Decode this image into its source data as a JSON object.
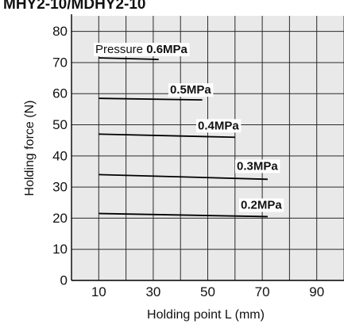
{
  "header_text": "MHY2-10/MDHY2-10",
  "chart_data": {
    "type": "line",
    "title": "",
    "xlabel": "Holding point L (mm)",
    "ylabel": "Holding force (N)",
    "xlim": [
      0,
      100
    ],
    "ylim": [
      0,
      85
    ],
    "xticks": [
      10,
      30,
      50,
      70,
      90
    ],
    "yticks": [
      0,
      10,
      20,
      30,
      40,
      50,
      60,
      70,
      80
    ],
    "grid": true,
    "background": "#e9e9e9",
    "series": [
      {
        "label_prefix": "Pressure",
        "name": "0.6MPa",
        "x": [
          10,
          32
        ],
        "y": [
          71.5,
          71
        ]
      },
      {
        "label_prefix": "",
        "name": "0.5MPa",
        "x": [
          10,
          48
        ],
        "y": [
          58.5,
          58
        ]
      },
      {
        "label_prefix": "",
        "name": "0.4MPa",
        "x": [
          10,
          60
        ],
        "y": [
          47,
          46
        ]
      },
      {
        "label_prefix": "",
        "name": "0.3MPa",
        "x": [
          10,
          72
        ],
        "y": [
          34,
          32.5
        ]
      },
      {
        "label_prefix": "",
        "name": "0.2MPa",
        "x": [
          10,
          72
        ],
        "y": [
          21.5,
          20.5
        ]
      }
    ]
  }
}
